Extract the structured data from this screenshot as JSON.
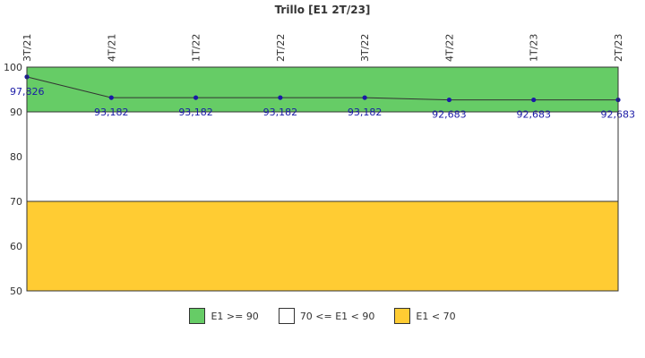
{
  "chart_data": {
    "type": "line",
    "title": "Trillo [E1 2T/23]",
    "categories": [
      "3T/21",
      "4T/21",
      "1T/22",
      "2T/22",
      "3T/22",
      "4T/22",
      "1T/23",
      "2T/23"
    ],
    "series": [
      {
        "values": [
          97.826,
          93.182,
          93.182,
          93.182,
          93.182,
          92.683,
          92.683,
          92.683
        ],
        "value_labels": [
          "97,826",
          "93,182",
          "93,182",
          "93,182",
          "93,182",
          "92,683",
          "92,683",
          "92,683"
        ],
        "color": "#1a1aa6"
      }
    ],
    "ylim": [
      50,
      100
    ],
    "yticks": [
      50,
      60,
      70,
      80,
      90,
      100
    ],
    "bands": [
      {
        "name": "E1 >= 90",
        "from": 90,
        "to": 100,
        "color": "#66cc66"
      },
      {
        "name": "70 <= E1 < 90",
        "from": 70,
        "to": 90,
        "color": "#ffffff"
      },
      {
        "name": "E1 < 70",
        "from": 50,
        "to": 70,
        "color": "#ffcc33"
      }
    ],
    "grid": false,
    "legend_position": "bottom",
    "line_color": "#333333"
  }
}
